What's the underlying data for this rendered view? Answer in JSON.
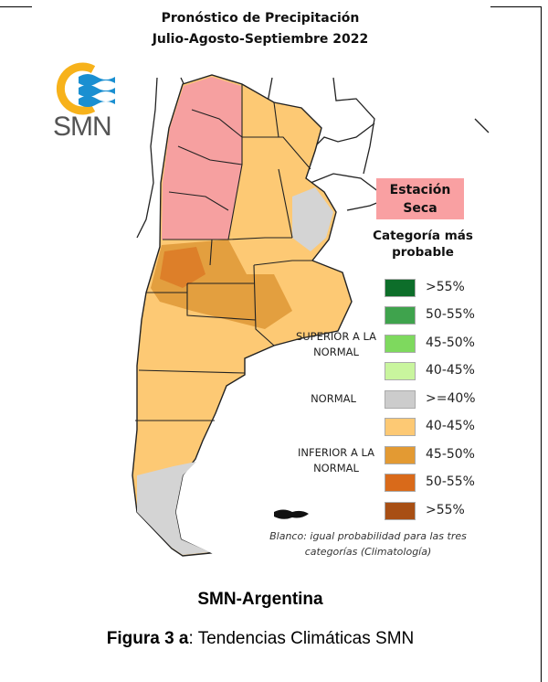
{
  "header": {
    "title_line1": "Pronóstico de Precipitación",
    "title_line2": "Julio-Agosto-Septiembre 2022"
  },
  "logo": {
    "text": "SMN"
  },
  "dry_season_label": "Estación Seca",
  "legend": {
    "title": "Categoría más probable",
    "groups": {
      "superior": "SUPERIOR A LA NORMAL",
      "normal": "NORMAL",
      "inferior": "INFERIOR A LA NORMAL"
    },
    "items": [
      {
        "label": ">55%",
        "color": "#0d6e2a"
      },
      {
        "label": "50-55%",
        "color": "#3fa34d"
      },
      {
        "label": "45-50%",
        "color": "#7ed95e"
      },
      {
        "label": "40-45%",
        "color": "#c9f59e"
      },
      {
        "label": ">=40%",
        "color": "#cccccc"
      },
      {
        "label": "40-45%",
        "color": "#fdc974"
      },
      {
        "label": "45-50%",
        "color": "#e39a33"
      },
      {
        "label": "50-55%",
        "color": "#d96a1a"
      },
      {
        "label": ">55%",
        "color": "#a84f14"
      }
    ],
    "footnote": "Blanco: igual probabilidad para las tres categorías (Climatología)"
  },
  "map_colors": {
    "dry": "#f6a0a0",
    "below_40_45": "#fdc974",
    "below_45_50": "#e09a3a",
    "normal": "#d4d4d4"
  },
  "credit": "SMN-Argentina",
  "caption": {
    "bold": "Figura 3 a",
    "rest": ": Tendencias Climáticas SMN"
  }
}
